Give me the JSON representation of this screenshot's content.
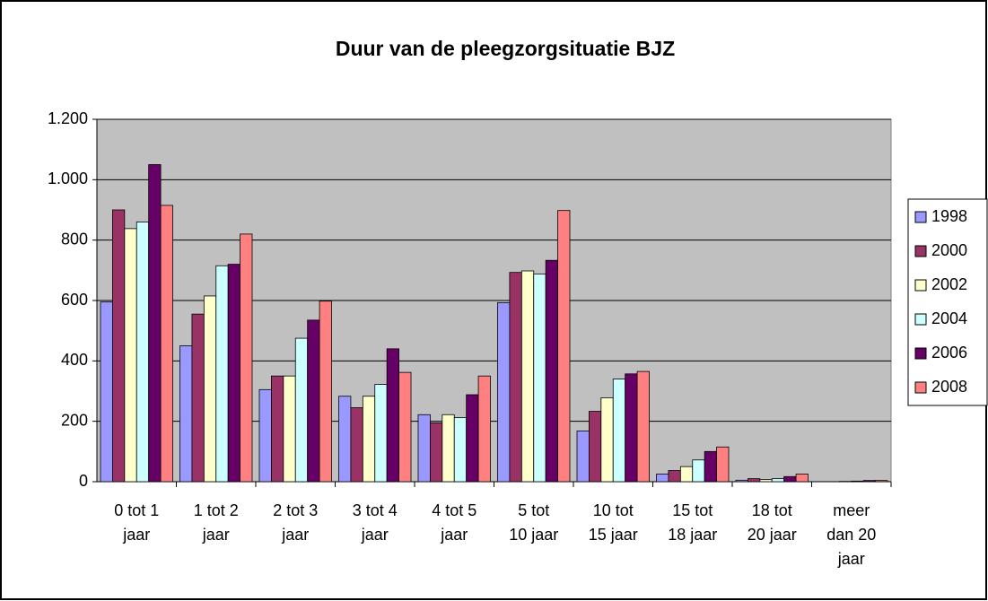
{
  "chart_data": {
    "type": "bar",
    "title": "Duur van de pleegzorgsituatie BJZ",
    "categories": [
      "0 tot 1\njaar",
      "1 tot 2\njaar",
      "2 tot 3\njaar",
      "3 tot 4\njaar",
      "4 tot 5\njaar",
      "5 tot\n10 jaar",
      "10 tot\n15 jaar",
      "15 tot\n18 jaar",
      "18 tot\n20 jaar",
      "meer\ndan 20\njaar"
    ],
    "series": [
      {
        "name": "1998",
        "color": "#9999ff",
        "values": [
          595,
          450,
          305,
          283,
          222,
          593,
          168,
          25,
          5,
          0
        ]
      },
      {
        "name": "2000",
        "color": "#993366",
        "values": [
          900,
          555,
          350,
          245,
          195,
          693,
          233,
          37,
          10,
          0
        ]
      },
      {
        "name": "2002",
        "color": "#ffffcc",
        "values": [
          838,
          615,
          350,
          283,
          222,
          698,
          278,
          50,
          7,
          1
        ]
      },
      {
        "name": "2004",
        "color": "#ccffff",
        "values": [
          860,
          715,
          475,
          322,
          212,
          688,
          340,
          72,
          10,
          2
        ]
      },
      {
        "name": "2006",
        "color": "#660066",
        "values": [
          1050,
          720,
          535,
          440,
          288,
          733,
          357,
          100,
          17,
          4
        ]
      },
      {
        "name": "2008",
        "color": "#ff8080",
        "values": [
          915,
          820,
          598,
          362,
          350,
          898,
          365,
          115,
          25,
          4
        ]
      }
    ],
    "ylim": [
      0,
      1200
    ],
    "yticks": [
      0,
      200,
      400,
      600,
      800,
      {
        "value": 1000,
        "label": "1.000"
      },
      {
        "value": 1200,
        "label": "1.200"
      }
    ],
    "grid": true,
    "legend": "right"
  }
}
